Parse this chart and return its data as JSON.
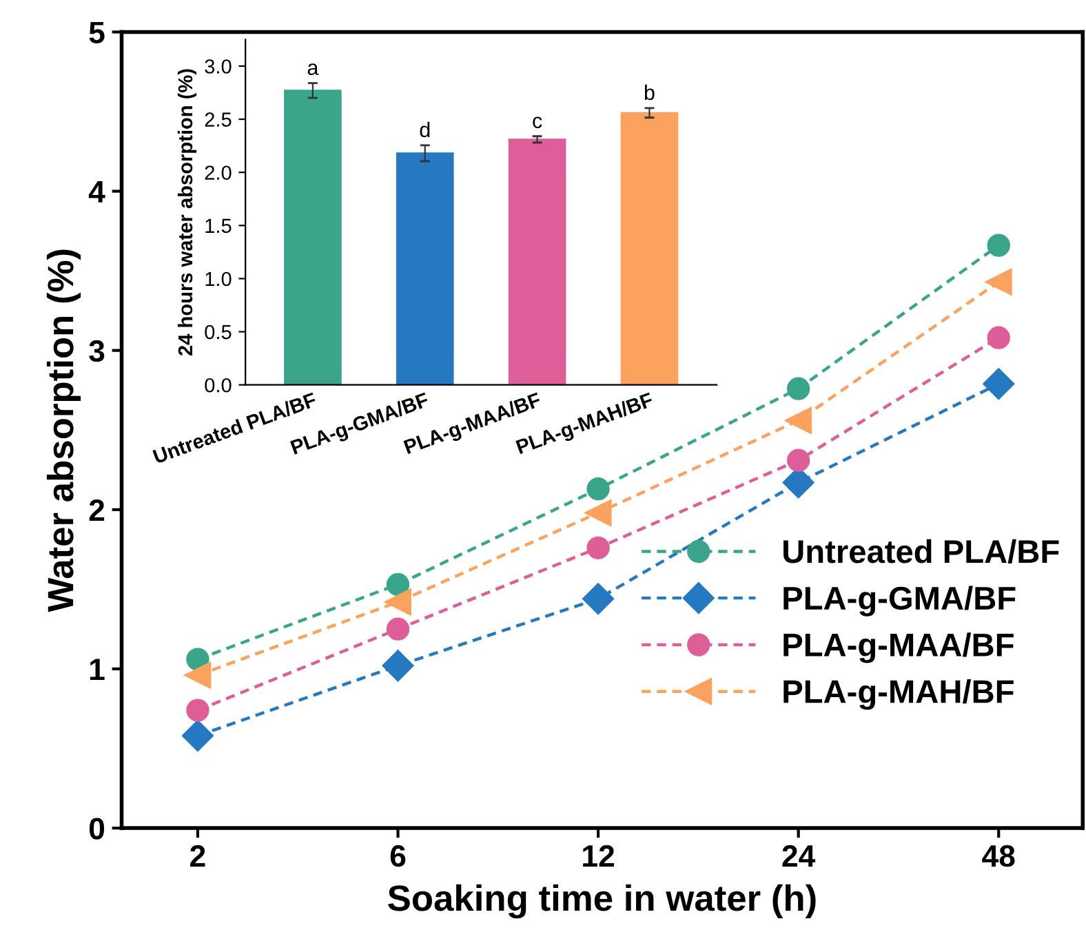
{
  "chart_data": [
    {
      "type": "line",
      "xlabel": "Soaking time in water (h)",
      "ylabel": "Water absorption (%)",
      "categories": [
        "2",
        "6",
        "12",
        "24",
        "48"
      ],
      "ylim": [
        0,
        5
      ],
      "yticks": [
        0,
        1,
        2,
        3,
        4,
        5
      ],
      "legend": "bottom right",
      "line_style": "dashed",
      "grid": false,
      "series": [
        {
          "name": "Untreated PLA/BF",
          "color": "#3aa58a",
          "marker": "circle",
          "values": [
            1.06,
            1.53,
            2.13,
            2.76,
            3.66
          ]
        },
        {
          "name": "PLA-g-GMA/BF",
          "color": "#2479c0",
          "marker": "diamond",
          "values": [
            0.58,
            1.02,
            1.44,
            2.17,
            2.79
          ]
        },
        {
          "name": "PLA-g-MAA/BF",
          "color": "#de5e9a",
          "marker": "circle",
          "values": [
            0.74,
            1.25,
            1.76,
            2.31,
            3.08
          ]
        },
        {
          "name": "PLA-g-MAH/BF",
          "color": "#fca25f",
          "marker": "triangle",
          "values": [
            0.96,
            1.42,
            1.98,
            2.56,
            3.43
          ]
        }
      ]
    },
    {
      "type": "bar",
      "ylabel": "24 hours water absorption (%)",
      "categories": [
        "Untreated PLA/BF",
        "PLA-g-GMA/BF",
        "PLA-g-MAA/BF",
        "PLA-g-MAH/BF"
      ],
      "values": [
        2.77,
        2.18,
        2.31,
        2.56
      ],
      "errors": [
        0.07,
        0.075,
        0.03,
        0.045
      ],
      "colors": [
        "#3aa58a",
        "#2479c0",
        "#de5e9a",
        "#fca25f"
      ],
      "ylim": [
        0,
        3.25
      ],
      "yticks": [
        {
          "value": 0,
          "label": "0.0"
        },
        0.5,
        {
          "value": 1,
          "label": "1.0"
        },
        1.5,
        {
          "value": 2,
          "label": "2.0"
        },
        2.5,
        {
          "value": 3,
          "label": "3.0"
        }
      ],
      "grid": false,
      "annotations": [
        {
          "text": "a",
          "x": "Untreated PLA/BF",
          "y": 2.84
        },
        {
          "text": "d",
          "x": "PLA-g-GMA/BF",
          "y": 2.255
        },
        {
          "text": "c",
          "x": "PLA-g-MAA/BF",
          "y": 2.34
        },
        {
          "text": "b",
          "x": "PLA-g-MAH/BF",
          "y": 2.605
        }
      ]
    }
  ]
}
